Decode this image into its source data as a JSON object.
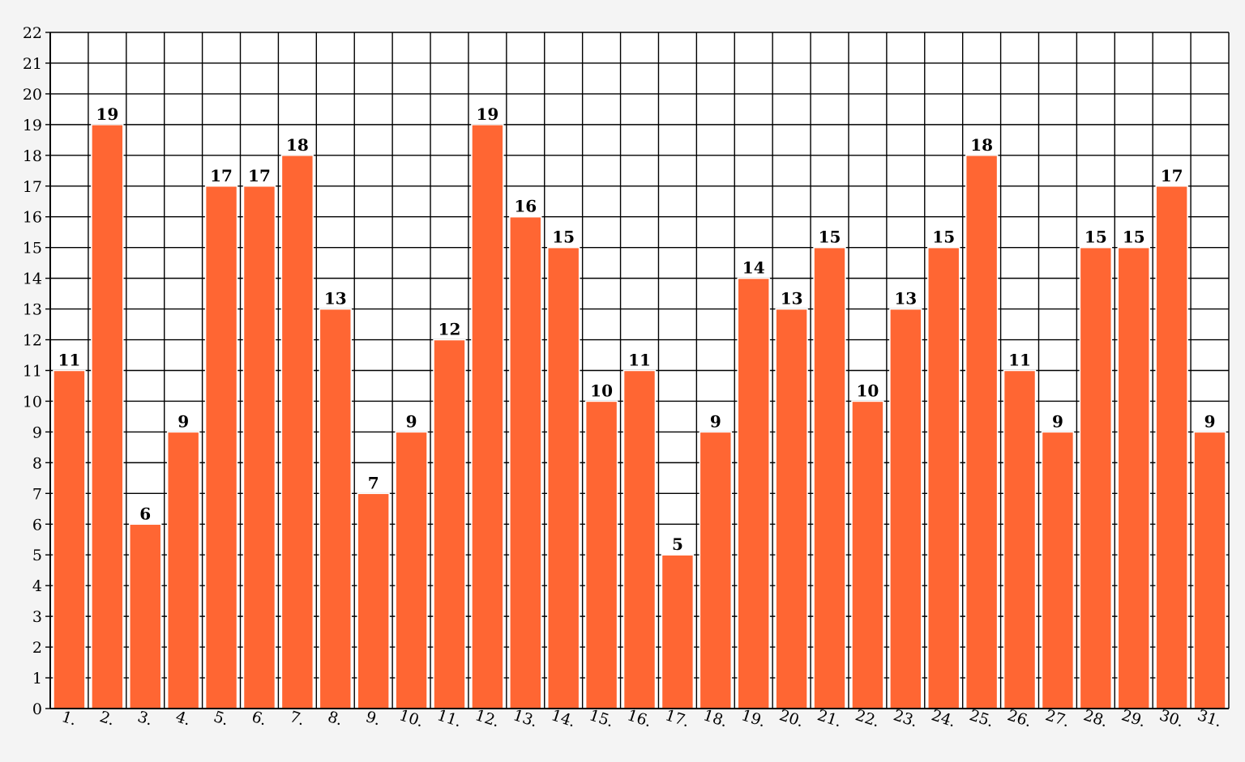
{
  "chart_data": {
    "type": "bar",
    "title": "",
    "xlabel": "",
    "ylabel": "",
    "categories": [
      "1.",
      "2.",
      "3.",
      "4.",
      "5.",
      "6.",
      "7.",
      "8.",
      "9.",
      "10.",
      "11.",
      "12.",
      "13.",
      "14.",
      "15.",
      "16.",
      "17.",
      "18.",
      "19.",
      "20.",
      "21.",
      "22.",
      "23.",
      "24.",
      "25.",
      "26.",
      "27.",
      "28.",
      "29.",
      "30.",
      "31."
    ],
    "values": [
      11,
      19,
      6,
      9,
      17,
      17,
      18,
      13,
      7,
      9,
      12,
      19,
      16,
      15,
      10,
      11,
      5,
      9,
      14,
      13,
      15,
      10,
      13,
      15,
      18,
      11,
      9,
      15,
      15,
      17,
      9
    ],
    "ylim": [
      0,
      22
    ],
    "yticks": [
      0,
      1,
      2,
      3,
      4,
      5,
      6,
      7,
      8,
      9,
      10,
      11,
      12,
      13,
      14,
      15,
      16,
      17,
      18,
      19,
      20,
      21,
      22
    ],
    "grid": true,
    "data_labels": true,
    "colors": {
      "bar": "#ff6633",
      "bar_edge": "#ffffff",
      "grid": "#000000",
      "plot_background": "#ffffff",
      "page_background": "#f4f4f4"
    }
  }
}
